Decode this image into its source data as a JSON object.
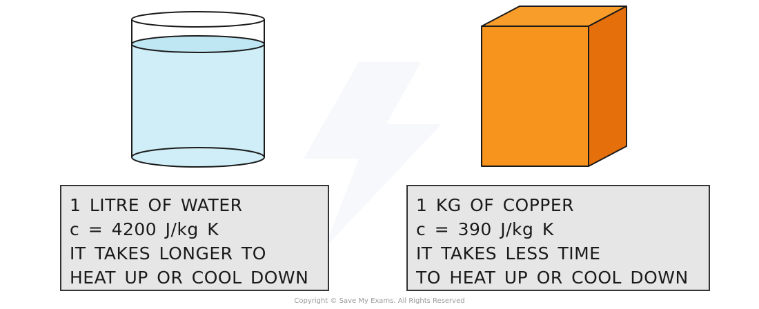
{
  "water": {
    "lines": [
      "1 LITRE OF WATER",
      "c = 4200 J/kg K",
      "IT TAKES LONGER TO",
      "HEAT UP OR COOL DOWN"
    ],
    "colors": {
      "water": "#cfeef7",
      "water_surface": "#bfe6f3",
      "outline": "#1a1a1a"
    }
  },
  "copper": {
    "lines": [
      "1 KG OF COPPER",
      "c = 390 J/kg K",
      "IT TAKES LESS TIME",
      "TO HEAT UP OR COOL DOWN"
    ],
    "colors": {
      "front": "#f7941d",
      "top": "#f99d2a",
      "side": "#e56f0a",
      "outline": "#1a1a1a"
    }
  },
  "label_box_color": "#e6e6e6",
  "copyright": "Copyright © Save My Exams. All Rights Reserved"
}
